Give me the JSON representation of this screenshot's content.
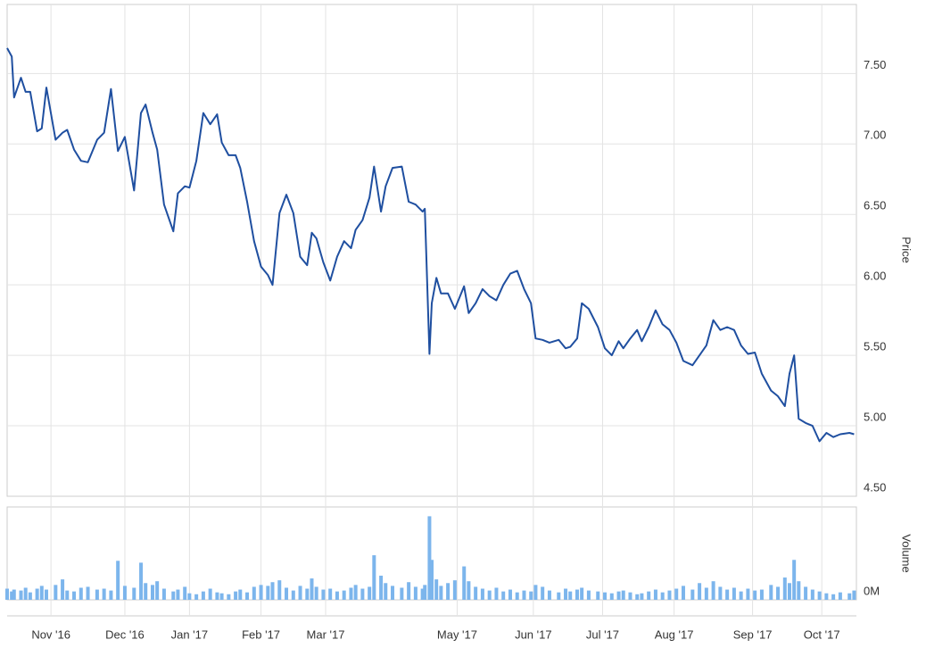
{
  "chart_data": {
    "type": "line",
    "x": [
      -19,
      -17,
      -16,
      -13,
      -11,
      -9,
      -6,
      -4,
      -2,
      2,
      5,
      7,
      10,
      13,
      16,
      20,
      23,
      26,
      29,
      32,
      36,
      39,
      41,
      44,
      46,
      49,
      53,
      55,
      58,
      60,
      63,
      66,
      69,
      72,
      74,
      77,
      80,
      82,
      85,
      88,
      91,
      94,
      96,
      99,
      102,
      105,
      108,
      111,
      113,
      115,
      118,
      121,
      124,
      127,
      130,
      132,
      135,
      138,
      140,
      143,
      145,
      148,
      152,
      155,
      158,
      161,
      162,
      164,
      165,
      167,
      169,
      172,
      175,
      179,
      181,
      184,
      187,
      190,
      193,
      196,
      199,
      202,
      205,
      208,
      210,
      213,
      216,
      220,
      223,
      225,
      228,
      230,
      233,
      237,
      240,
      243,
      246,
      248,
      251,
      254,
      256,
      259,
      262,
      265,
      268,
      271,
      274,
      278,
      281,
      284,
      287,
      290,
      293,
      296,
      299,
      302,
      305,
      308,
      312,
      315,
      318,
      320,
      322,
      324,
      327,
      330,
      333,
      336,
      339,
      342,
      346,
      348
    ],
    "series": [
      {
        "name": "Price",
        "color": "#1f4fa0",
        "values": [
          7.68,
          7.62,
          7.33,
          7.47,
          7.37,
          7.37,
          7.09,
          7.11,
          7.4,
          7.03,
          7.08,
          7.1,
          6.96,
          6.88,
          6.87,
          7.03,
          7.08,
          7.39,
          6.95,
          7.05,
          6.67,
          7.22,
          7.28,
          7.08,
          6.96,
          6.57,
          6.38,
          6.65,
          6.7,
          6.69,
          6.88,
          7.22,
          7.14,
          7.21,
          7.01,
          6.92,
          6.92,
          6.83,
          6.59,
          6.31,
          6.13,
          6.07,
          6.0,
          6.51,
          6.64,
          6.51,
          6.2,
          6.14,
          6.37,
          6.33,
          6.16,
          6.03,
          6.2,
          6.31,
          6.26,
          6.39,
          6.46,
          6.62,
          6.84,
          6.52,
          6.7,
          6.83,
          6.84,
          6.59,
          6.57,
          6.52,
          6.54,
          5.51,
          5.87,
          6.05,
          5.94,
          5.94,
          5.83,
          5.99,
          5.8,
          5.87,
          5.97,
          5.92,
          5.89,
          6.0,
          6.08,
          6.1,
          5.97,
          5.87,
          5.62,
          5.61,
          5.59,
          5.61,
          5.55,
          5.56,
          5.62,
          5.87,
          5.83,
          5.7,
          5.55,
          5.5,
          5.6,
          5.55,
          5.62,
          5.68,
          5.6,
          5.7,
          5.82,
          5.72,
          5.68,
          5.59,
          5.46,
          5.43,
          5.5,
          5.57,
          5.75,
          5.68,
          5.7,
          5.68,
          5.57,
          5.51,
          5.52,
          5.37,
          5.25,
          5.21,
          5.14,
          5.37,
          5.5,
          5.05,
          5.02,
          5.0,
          4.89,
          4.95,
          4.92,
          4.94,
          4.95,
          4.94
        ]
      },
      {
        "name": "Volume",
        "type": "bar",
        "axis": "y2",
        "color": "#7cb5ec",
        "values": [
          1.2,
          0.9,
          1.1,
          1.0,
          1.3,
          0.8,
          1.2,
          1.5,
          1.1,
          1.6,
          2.2,
          1.0,
          0.9,
          1.3,
          1.4,
          1.1,
          1.2,
          1.0,
          4.2,
          1.5,
          1.3,
          4.0,
          1.8,
          1.6,
          2.0,
          1.2,
          0.9,
          1.1,
          1.4,
          0.7,
          0.6,
          0.9,
          1.2,
          0.8,
          0.7,
          0.6,
          0.9,
          1.1,
          0.8,
          1.4,
          1.6,
          1.5,
          1.9,
          2.1,
          1.3,
          1.0,
          1.5,
          1.2,
          2.3,
          1.4,
          1.1,
          1.2,
          0.9,
          1.0,
          1.3,
          1.6,
          1.2,
          1.4,
          4.8,
          2.6,
          1.8,
          1.5,
          1.3,
          1.9,
          1.4,
          1.2,
          1.6,
          9.0,
          4.3,
          2.2,
          1.5,
          1.8,
          2.1,
          3.6,
          2.0,
          1.4,
          1.2,
          1.0,
          1.3,
          0.9,
          1.1,
          0.8,
          1.0,
          0.9,
          1.6,
          1.4,
          1.0,
          0.8,
          1.2,
          0.9,
          1.1,
          1.3,
          1.0,
          0.9,
          0.8,
          0.7,
          0.9,
          1.0,
          0.8,
          0.6,
          0.7,
          0.9,
          1.1,
          0.8,
          1.0,
          1.2,
          1.5,
          1.1,
          1.8,
          1.3,
          2.0,
          1.4,
          1.1,
          1.3,
          0.9,
          1.2,
          1.0,
          1.1,
          1.6,
          1.4,
          2.4,
          1.8,
          4.3,
          2.0,
          1.4,
          1.1,
          0.9,
          0.7,
          0.6,
          0.8,
          0.7,
          1.0
        ]
      }
    ],
    "xlim": [
      -19,
      349
    ],
    "xticks": [
      {
        "value": 0,
        "label": "Nov '16"
      },
      {
        "value": 32,
        "label": "Dec '16"
      },
      {
        "value": 60,
        "label": "Jan '17"
      },
      {
        "value": 91,
        "label": "Feb '17"
      },
      {
        "value": 119,
        "label": "Mar '17"
      },
      {
        "value": 176,
        "label": "May '17"
      },
      {
        "value": 209,
        "label": "Jun '17"
      },
      {
        "value": 239,
        "label": "Jul '17"
      },
      {
        "value": 270,
        "label": "Aug '17"
      },
      {
        "value": 304,
        "label": "Sep '17"
      },
      {
        "value": 334,
        "label": "Oct '17"
      }
    ],
    "ylim": [
      4.5,
      7.99
    ],
    "yticks": [
      {
        "value": 4.5,
        "label": "4.50"
      },
      {
        "value": 5,
        "label": "5.00"
      },
      {
        "value": 5.5,
        "label": "5.50"
      },
      {
        "value": 6,
        "label": "6.00"
      },
      {
        "value": 6.5,
        "label": "6.50"
      },
      {
        "value": 7,
        "label": "7.00"
      },
      {
        "value": 7.5,
        "label": "7.50"
      }
    ],
    "y2lim": [
      0,
      10
    ],
    "y2ticks": [
      {
        "value": 0,
        "label": "0M"
      }
    ],
    "grid": true
  }
}
